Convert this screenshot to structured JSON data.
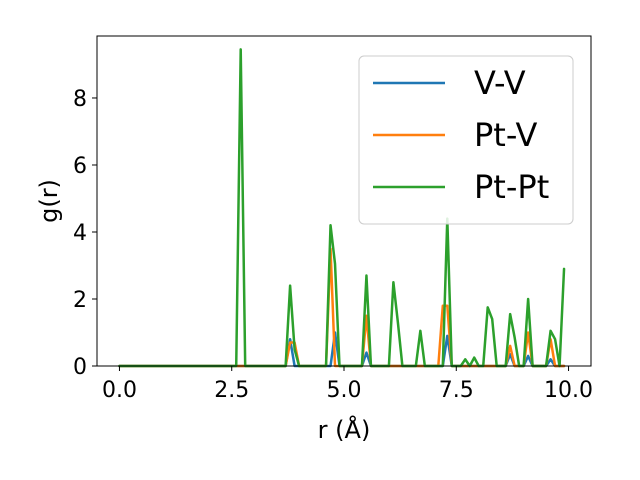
{
  "chart_data": {
    "type": "line",
    "xlabel": "r (Å)",
    "ylabel": "g(r)",
    "xlim": [
      -0.5,
      10.5
    ],
    "ylim": [
      0,
      9.85
    ],
    "x_ticks": [
      0.0,
      2.5,
      5.0,
      7.5,
      10.0
    ],
    "x_tick_labels": [
      "0.0",
      "2.5",
      "5.0",
      "7.5",
      "10.0"
    ],
    "y_ticks": [
      0,
      2,
      4,
      6,
      8
    ],
    "y_tick_labels": [
      "0",
      "2",
      "4",
      "6",
      "8"
    ],
    "grid": false,
    "legend_position": "upper-right",
    "colors": {
      "V-V": "#1f77b4",
      "Pt-V": "#ff7f0e",
      "Pt-Pt": "#2ca02c",
      "axis": "#000000",
      "legend_border": "#cccccc"
    },
    "x": [
      0.0,
      0.1,
      0.2,
      0.3,
      0.4,
      0.5,
      0.6,
      0.7,
      0.8,
      0.9,
      1.0,
      1.1,
      1.2,
      1.3,
      1.4,
      1.5,
      1.6,
      1.7,
      1.8,
      1.9,
      2.0,
      2.1,
      2.2,
      2.3,
      2.4,
      2.5,
      2.6,
      2.7,
      2.8,
      2.9,
      3.0,
      3.1,
      3.2,
      3.3,
      3.4,
      3.5,
      3.6,
      3.7,
      3.8,
      3.9,
      4.0,
      4.1,
      4.2,
      4.3,
      4.4,
      4.5,
      4.6,
      4.7,
      4.8,
      4.9,
      5.0,
      5.1,
      5.2,
      5.3,
      5.4,
      5.5,
      5.6,
      5.7,
      5.8,
      5.9,
      6.0,
      6.1,
      6.2,
      6.3,
      6.4,
      6.5,
      6.6,
      6.7,
      6.8,
      6.9,
      7.0,
      7.1,
      7.2,
      7.3,
      7.4,
      7.5,
      7.6,
      7.7,
      7.8,
      7.9,
      8.0,
      8.1,
      8.2,
      8.3,
      8.4,
      8.5,
      8.6,
      8.7,
      8.8,
      8.9,
      9.0,
      9.1,
      9.2,
      9.3,
      9.4,
      9.5,
      9.6,
      9.7,
      9.8,
      9.9
    ],
    "series": [
      {
        "name": "V-V",
        "values": [
          0,
          0,
          0,
          0,
          0,
          0,
          0,
          0,
          0,
          0,
          0,
          0,
          0,
          0,
          0,
          0,
          0,
          0,
          0,
          0,
          0,
          0,
          0,
          0,
          0,
          0,
          0,
          0,
          0,
          0,
          0,
          0,
          0,
          0,
          0,
          0,
          0,
          0,
          0.8,
          0,
          0,
          0,
          0,
          0,
          0,
          0,
          0,
          0,
          1.0,
          0,
          0,
          0,
          0,
          0,
          0,
          0.4,
          0,
          0,
          0,
          0,
          0,
          0,
          0,
          0,
          0,
          0,
          0,
          0,
          0,
          0,
          0,
          0,
          0,
          0.9,
          0,
          0,
          0,
          0,
          0,
          0,
          0,
          0,
          0,
          0,
          0,
          0,
          0,
          0.35,
          0,
          0,
          0,
          0.3,
          0,
          0,
          0,
          0,
          0.2,
          0,
          0,
          0
        ]
      },
      {
        "name": "Pt-V",
        "values": [
          0,
          0,
          0,
          0,
          0,
          0,
          0,
          0,
          0,
          0,
          0,
          0,
          0,
          0,
          0,
          0,
          0,
          0,
          0,
          0,
          0,
          0,
          0,
          0,
          0,
          0,
          0,
          0,
          0,
          0,
          0,
          0,
          0,
          0,
          0,
          0,
          0,
          0,
          0.7,
          0.7,
          0,
          0,
          0,
          0,
          0,
          0,
          0,
          3.5,
          0,
          0,
          0,
          0,
          0,
          0,
          0,
          1.5,
          0,
          0,
          0,
          0,
          0,
          0,
          0,
          0,
          0,
          0,
          0,
          0,
          0,
          0,
          0,
          0,
          1.8,
          1.8,
          0,
          0,
          0,
          0,
          0,
          0,
          0,
          0,
          0,
          0,
          0,
          0,
          0,
          0.6,
          0,
          0,
          0,
          1.0,
          0,
          0,
          0,
          0,
          0.8,
          0,
          0,
          0
        ]
      },
      {
        "name": "Pt-Pt",
        "values": [
          0,
          0,
          0,
          0,
          0,
          0,
          0,
          0,
          0,
          0,
          0,
          0,
          0,
          0,
          0,
          0,
          0,
          0,
          0,
          0,
          0,
          0,
          0,
          0,
          0,
          0,
          0,
          9.45,
          0,
          0,
          0,
          0,
          0,
          0,
          0,
          0,
          0,
          0,
          2.4,
          0.5,
          0,
          0,
          0,
          0,
          0,
          0,
          0,
          4.2,
          3.05,
          0,
          0,
          0,
          0,
          0,
          0,
          2.7,
          0,
          0,
          0,
          0,
          0,
          2.5,
          1.3,
          0,
          0,
          0,
          0,
          1.05,
          0,
          0,
          0,
          0,
          0,
          4.4,
          0,
          0,
          0,
          0.2,
          0,
          0.25,
          0,
          0,
          1.75,
          1.4,
          0,
          0,
          0,
          1.55,
          0.85,
          0,
          0,
          2.0,
          0,
          0,
          0,
          0,
          1.05,
          0.8,
          0,
          2.9
        ]
      }
    ]
  }
}
